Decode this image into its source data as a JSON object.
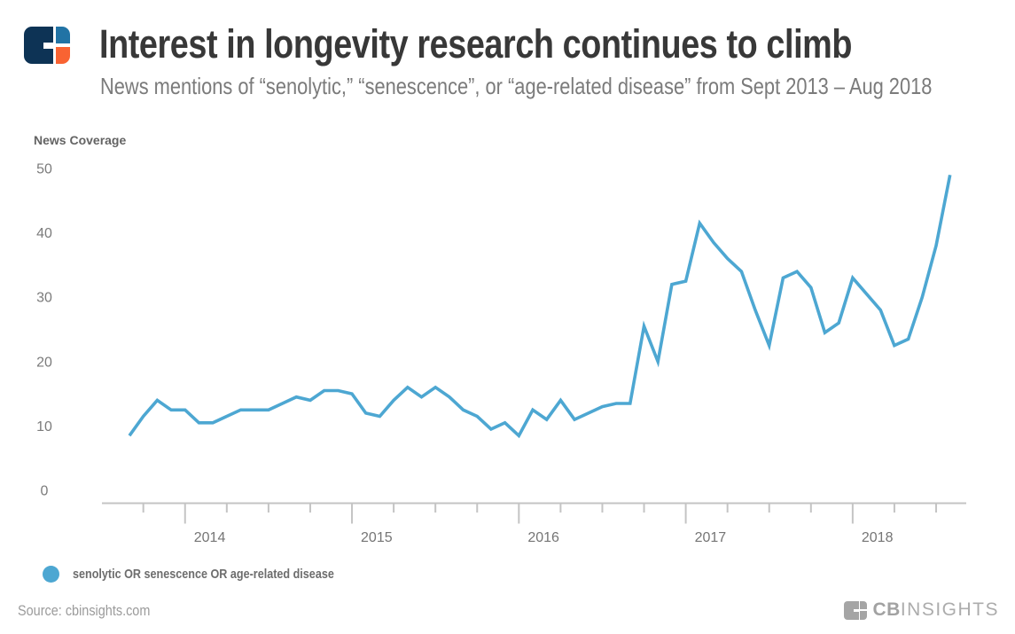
{
  "header": {
    "title": "Interest in longevity research continues to climb",
    "subtitle": "News mentions of “senolytic,” “senescence”, or “age-related disease” from Sept 2013 – Aug 2018"
  },
  "chart_data": {
    "type": "line",
    "axis_title": "News Coverage",
    "x_frequency": "monthly",
    "x_start": "2013-09",
    "x_end": "2018-08",
    "months": [
      "2013-09",
      "2013-10",
      "2013-11",
      "2013-12",
      "2014-01",
      "2014-02",
      "2014-03",
      "2014-04",
      "2014-05",
      "2014-06",
      "2014-07",
      "2014-08",
      "2014-09",
      "2014-10",
      "2014-11",
      "2014-12",
      "2015-01",
      "2015-02",
      "2015-03",
      "2015-04",
      "2015-05",
      "2015-06",
      "2015-07",
      "2015-08",
      "2015-09",
      "2015-10",
      "2015-11",
      "2015-12",
      "2016-01",
      "2016-02",
      "2016-03",
      "2016-04",
      "2016-05",
      "2016-06",
      "2016-07",
      "2016-08",
      "2016-09",
      "2016-10",
      "2016-11",
      "2016-12",
      "2017-01",
      "2017-02",
      "2017-03",
      "2017-04",
      "2017-05",
      "2017-06",
      "2017-07",
      "2017-08",
      "2017-09",
      "2017-10",
      "2017-11",
      "2017-12",
      "2018-01",
      "2018-02",
      "2018-03",
      "2018-04",
      "2018-05",
      "2018-06",
      "2018-07",
      "2018-08"
    ],
    "series": [
      {
        "name": "senolytic OR senescence OR age-related disease",
        "color": "#4da7d2",
        "values": [
          8.5,
          11.5,
          14,
          12.5,
          12.5,
          10.5,
          10.5,
          11.5,
          12.5,
          12.5,
          12.5,
          13.5,
          14.5,
          14,
          15.5,
          15.5,
          15,
          12,
          11.5,
          14,
          16,
          14.5,
          16,
          14.5,
          12.5,
          11.5,
          9.5,
          10.5,
          8.5,
          12.5,
          11,
          14,
          11,
          12,
          13,
          13.5,
          13.5,
          25.5,
          20,
          32,
          32.5,
          41.5,
          38.5,
          36,
          34,
          28,
          22.5,
          33,
          34,
          31.5,
          24.5,
          26,
          33,
          30.5,
          28,
          22.5,
          23.5,
          30,
          38,
          49
        ]
      }
    ],
    "yticks": [
      0,
      10,
      20,
      30,
      40,
      50
    ],
    "ylim": [
      0,
      52
    ],
    "x_tick_labels": [
      "2014",
      "2015",
      "2016",
      "2017",
      "2018"
    ],
    "grid": false,
    "legend_position": "bottom-left"
  },
  "footer": {
    "source": "Source: cbinsights.com",
    "brand_cb": "CB",
    "brand_insights": "INSIGHTS"
  },
  "colors": {
    "line": "#4da7d2",
    "logo_navy": "#0d3355",
    "logo_blue": "#2173a5",
    "logo_orange": "#f96332",
    "footer_gray": "#a5a5a5",
    "axis_gray": "#c4c4c4"
  }
}
